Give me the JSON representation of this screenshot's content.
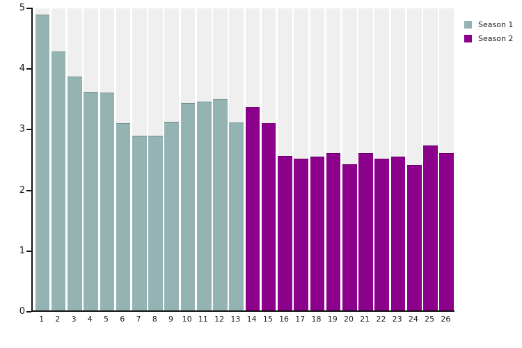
{
  "chart_data": {
    "type": "bar",
    "title": "",
    "xlabel": "",
    "ylabel": "",
    "categories": [
      "1",
      "2",
      "3",
      "4",
      "5",
      "6",
      "7",
      "8",
      "9",
      "10",
      "11",
      "12",
      "13",
      "14",
      "15",
      "16",
      "17",
      "18",
      "19",
      "20",
      "21",
      "22",
      "23",
      "24",
      "25",
      "26"
    ],
    "series": [
      {
        "name": "Season 1",
        "color": "#94b4b4",
        "values": [
          4.9,
          4.29,
          3.88,
          3.62,
          3.61,
          3.11,
          2.9,
          2.9,
          3.13,
          3.44,
          3.46,
          3.51,
          3.12
        ]
      },
      {
        "name": "Season 2",
        "color": "#8b018b",
        "values": [
          3.37,
          3.11,
          2.57,
          2.52,
          2.56,
          2.61,
          2.43,
          2.62,
          2.52,
          2.56,
          2.42,
          2.74,
          2.61
        ]
      }
    ],
    "ylim": [
      0,
      5
    ],
    "yticks": [
      0,
      1,
      2,
      3,
      4,
      5
    ],
    "grid": false,
    "legend_position": "top-right",
    "stripe_color": "#efefef",
    "axis_color": "#111111",
    "background": "#ffffff"
  },
  "legend": {
    "season1_label": "Season 1",
    "season2_label": "Season 2"
  }
}
